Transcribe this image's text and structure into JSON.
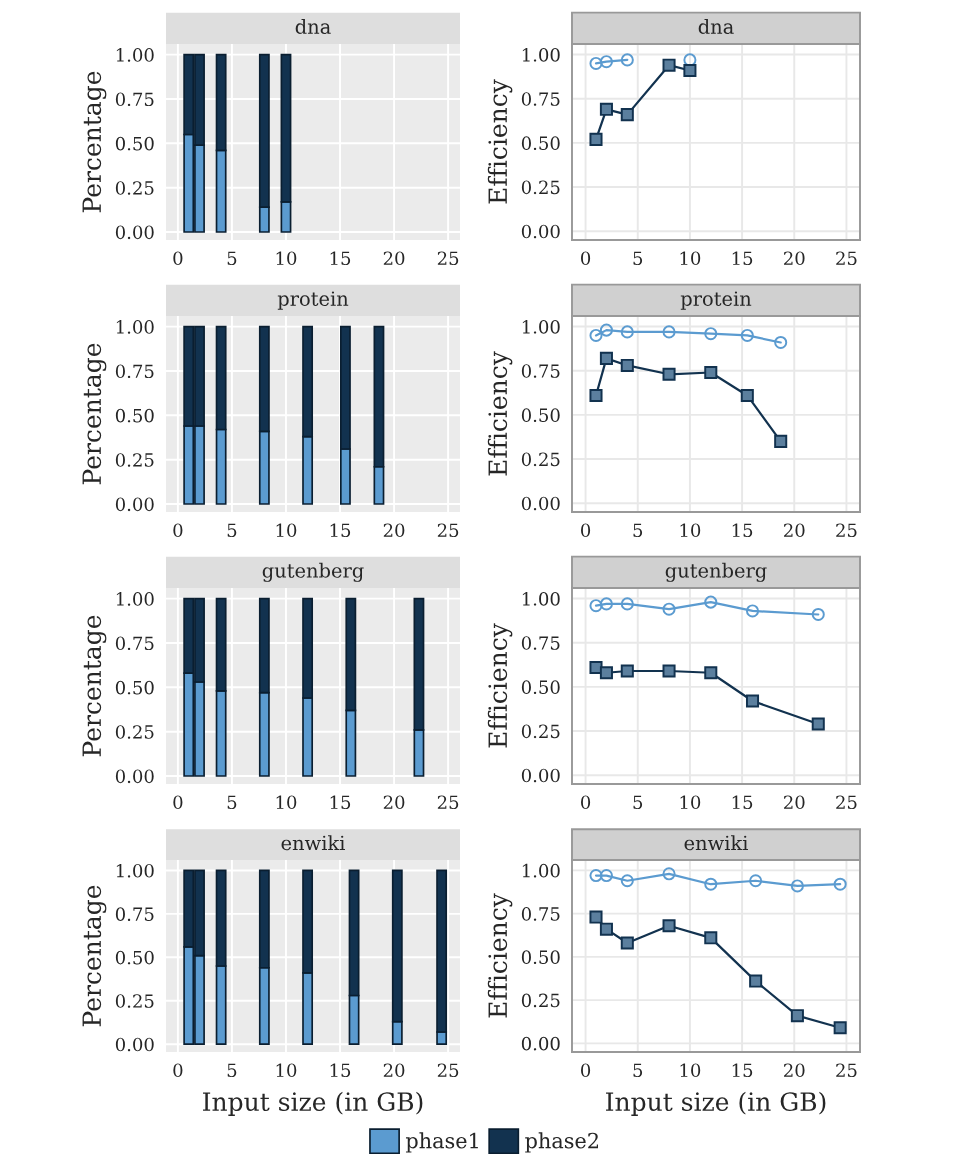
{
  "chart_data": [
    {
      "type": "bar",
      "title": "dna",
      "ylabel": "Percentage",
      "stacked": true,
      "legend": "bottom",
      "x": [
        1,
        2,
        4,
        8,
        10
      ],
      "xlim": [
        -1.1,
        26.1
      ],
      "xticks": [
        0,
        5,
        10,
        15,
        20,
        25
      ],
      "ylim": [
        -0.045,
        1.06
      ],
      "yticks": [
        {
          "value": 0,
          "label": "0.00"
        },
        {
          "value": 0.25,
          "label": "0.25"
        },
        {
          "value": 0.5,
          "label": "0.50"
        },
        {
          "value": 0.75,
          "label": "0.75"
        },
        {
          "value": 1,
          "label": "1.00"
        }
      ],
      "grid": true,
      "series": [
        {
          "name": "phase1",
          "color": "#5b9bd0",
          "values": [
            0.55,
            0.49,
            0.46,
            0.14,
            0.17
          ]
        },
        {
          "name": "phase2",
          "color": "#12324f",
          "values": [
            0.45,
            0.51,
            0.54,
            0.86,
            0.83
          ]
        }
      ]
    },
    {
      "type": "line",
      "title": "dna",
      "ylabel": "Efficiency",
      "legend": "bottom",
      "x": [
        1,
        2,
        4,
        8,
        10
      ],
      "xlim": [
        -1.3,
        26.3
      ],
      "xticks": [
        0,
        5,
        10,
        15,
        20,
        25
      ],
      "ylim": [
        -0.05,
        1.06
      ],
      "yticks": [
        {
          "value": 0,
          "label": "0.00"
        },
        {
          "value": 0.25,
          "label": "0.25"
        },
        {
          "value": 0.5,
          "label": "0.50"
        },
        {
          "value": 0.75,
          "label": "0.75"
        },
        {
          "value": 1,
          "label": "1.00"
        }
      ],
      "grid": true,
      "series": [
        {
          "name": "phase1",
          "color": "#5b9bd0",
          "marker": "circle",
          "values": [
            0.95,
            0.96,
            0.97,
            null,
            0.97
          ]
        },
        {
          "name": "phase2",
          "color": "#12324f",
          "marker": "square",
          "values": [
            0.52,
            0.69,
            0.66,
            0.94,
            0.91
          ]
        }
      ]
    },
    {
      "type": "bar",
      "title": "protein",
      "ylabel": "Percentage",
      "stacked": true,
      "legend": "bottom",
      "x": [
        1,
        2,
        4,
        8,
        12,
        15.5,
        18.6
      ],
      "xlim": [
        -1.1,
        26.1
      ],
      "xticks": [
        0,
        5,
        10,
        15,
        20,
        25
      ],
      "ylim": [
        -0.045,
        1.06
      ],
      "yticks": [
        {
          "value": 0,
          "label": "0.00"
        },
        {
          "value": 0.25,
          "label": "0.25"
        },
        {
          "value": 0.5,
          "label": "0.50"
        },
        {
          "value": 0.75,
          "label": "0.75"
        },
        {
          "value": 1,
          "label": "1.00"
        }
      ],
      "grid": true,
      "series": [
        {
          "name": "phase1",
          "color": "#5b9bd0",
          "values": [
            0.44,
            0.44,
            0.42,
            0.41,
            0.38,
            0.31,
            0.21
          ]
        },
        {
          "name": "phase2",
          "color": "#12324f",
          "values": [
            0.56,
            0.56,
            0.58,
            0.59,
            0.62,
            0.69,
            0.79
          ]
        }
      ]
    },
    {
      "type": "line",
      "title": "protein",
      "ylabel": "Efficiency",
      "legend": "bottom",
      "x": [
        1,
        2,
        4,
        8,
        12,
        15.5,
        18.7
      ],
      "xlim": [
        -1.3,
        26.3
      ],
      "xticks": [
        0,
        5,
        10,
        15,
        20,
        25
      ],
      "ylim": [
        -0.05,
        1.06
      ],
      "yticks": [
        {
          "value": 0,
          "label": "0.00"
        },
        {
          "value": 0.25,
          "label": "0.25"
        },
        {
          "value": 0.5,
          "label": "0.50"
        },
        {
          "value": 0.75,
          "label": "0.75"
        },
        {
          "value": 1,
          "label": "1.00"
        }
      ],
      "grid": true,
      "series": [
        {
          "name": "phase1",
          "color": "#5b9bd0",
          "marker": "circle",
          "values": [
            0.95,
            0.98,
            0.97,
            0.97,
            0.96,
            0.95,
            0.91
          ]
        },
        {
          "name": "phase2",
          "color": "#12324f",
          "marker": "square",
          "values": [
            0.61,
            0.82,
            0.78,
            0.73,
            0.74,
            0.61,
            0.35
          ]
        }
      ]
    },
    {
      "type": "bar",
      "title": "gutenberg",
      "ylabel": "Percentage",
      "stacked": true,
      "legend": "bottom",
      "x": [
        1,
        2,
        4,
        8,
        12,
        16,
        22.3
      ],
      "xlim": [
        -1.1,
        26.1
      ],
      "xticks": [
        0,
        5,
        10,
        15,
        20,
        25
      ],
      "ylim": [
        -0.045,
        1.06
      ],
      "yticks": [
        {
          "value": 0,
          "label": "0.00"
        },
        {
          "value": 0.25,
          "label": "0.25"
        },
        {
          "value": 0.5,
          "label": "0.50"
        },
        {
          "value": 0.75,
          "label": "0.75"
        },
        {
          "value": 1,
          "label": "1.00"
        }
      ],
      "grid": true,
      "series": [
        {
          "name": "phase1",
          "color": "#5b9bd0",
          "values": [
            0.58,
            0.53,
            0.48,
            0.47,
            0.44,
            0.37,
            0.26
          ]
        },
        {
          "name": "phase2",
          "color": "#12324f",
          "values": [
            0.42,
            0.47,
            0.52,
            0.53,
            0.56,
            0.63,
            0.74
          ]
        }
      ]
    },
    {
      "type": "line",
      "title": "gutenberg",
      "ylabel": "Efficiency",
      "legend": "bottom",
      "x": [
        1,
        2,
        4,
        8,
        12,
        16,
        22.3
      ],
      "xlim": [
        -1.3,
        26.3
      ],
      "xticks": [
        0,
        5,
        10,
        15,
        20,
        25
      ],
      "ylim": [
        -0.05,
        1.06
      ],
      "yticks": [
        {
          "value": 0,
          "label": "0.00"
        },
        {
          "value": 0.25,
          "label": "0.25"
        },
        {
          "value": 0.5,
          "label": "0.50"
        },
        {
          "value": 0.75,
          "label": "0.75"
        },
        {
          "value": 1,
          "label": "1.00"
        }
      ],
      "grid": true,
      "series": [
        {
          "name": "phase1",
          "color": "#5b9bd0",
          "marker": "circle",
          "values": [
            0.96,
            0.97,
            0.97,
            0.94,
            0.98,
            0.93,
            0.91
          ]
        },
        {
          "name": "phase2",
          "color": "#12324f",
          "marker": "square",
          "values": [
            0.61,
            0.58,
            0.59,
            0.59,
            0.58,
            0.42,
            0.29
          ]
        }
      ]
    },
    {
      "type": "bar",
      "title": "enwiki",
      "ylabel": "Percentage",
      "xlabel": "Input size (in GB)",
      "stacked": true,
      "legend": "bottom",
      "x": [
        1,
        2,
        4,
        8,
        12,
        16.3,
        20.3,
        24.4
      ],
      "xlim": [
        -1.1,
        26.1
      ],
      "xticks": [
        0,
        5,
        10,
        15,
        20,
        25
      ],
      "ylim": [
        -0.045,
        1.06
      ],
      "yticks": [
        {
          "value": 0,
          "label": "0.00"
        },
        {
          "value": 0.25,
          "label": "0.25"
        },
        {
          "value": 0.5,
          "label": "0.50"
        },
        {
          "value": 0.75,
          "label": "0.75"
        },
        {
          "value": 1,
          "label": "1.00"
        }
      ],
      "grid": true,
      "series": [
        {
          "name": "phase1",
          "color": "#5b9bd0",
          "values": [
            0.56,
            0.51,
            0.45,
            0.44,
            0.41,
            0.28,
            0.13,
            0.07
          ]
        },
        {
          "name": "phase2",
          "color": "#12324f",
          "values": [
            0.44,
            0.49,
            0.55,
            0.56,
            0.59,
            0.72,
            0.87,
            0.93
          ]
        }
      ]
    },
    {
      "type": "line",
      "title": "enwiki",
      "ylabel": "Efficiency",
      "xlabel": "Input size (in GB)",
      "legend": "bottom",
      "x": [
        1,
        2,
        4,
        8,
        12,
        16.3,
        20.3,
        24.4
      ],
      "xlim": [
        -1.3,
        26.3
      ],
      "xticks": [
        0,
        5,
        10,
        15,
        20,
        25
      ],
      "ylim": [
        -0.05,
        1.06
      ],
      "yticks": [
        {
          "value": 0,
          "label": "0.00"
        },
        {
          "value": 0.25,
          "label": "0.25"
        },
        {
          "value": 0.5,
          "label": "0.50"
        },
        {
          "value": 0.75,
          "label": "0.75"
        },
        {
          "value": 1,
          "label": "1.00"
        }
      ],
      "grid": true,
      "series": [
        {
          "name": "phase1",
          "color": "#5b9bd0",
          "marker": "circle",
          "values": [
            0.97,
            0.97,
            0.94,
            0.98,
            0.92,
            0.94,
            0.91,
            0.92
          ]
        },
        {
          "name": "phase2",
          "color": "#12324f",
          "marker": "square",
          "values": [
            0.73,
            0.66,
            0.58,
            0.68,
            0.61,
            0.36,
            0.16,
            0.09
          ]
        }
      ]
    }
  ]
}
